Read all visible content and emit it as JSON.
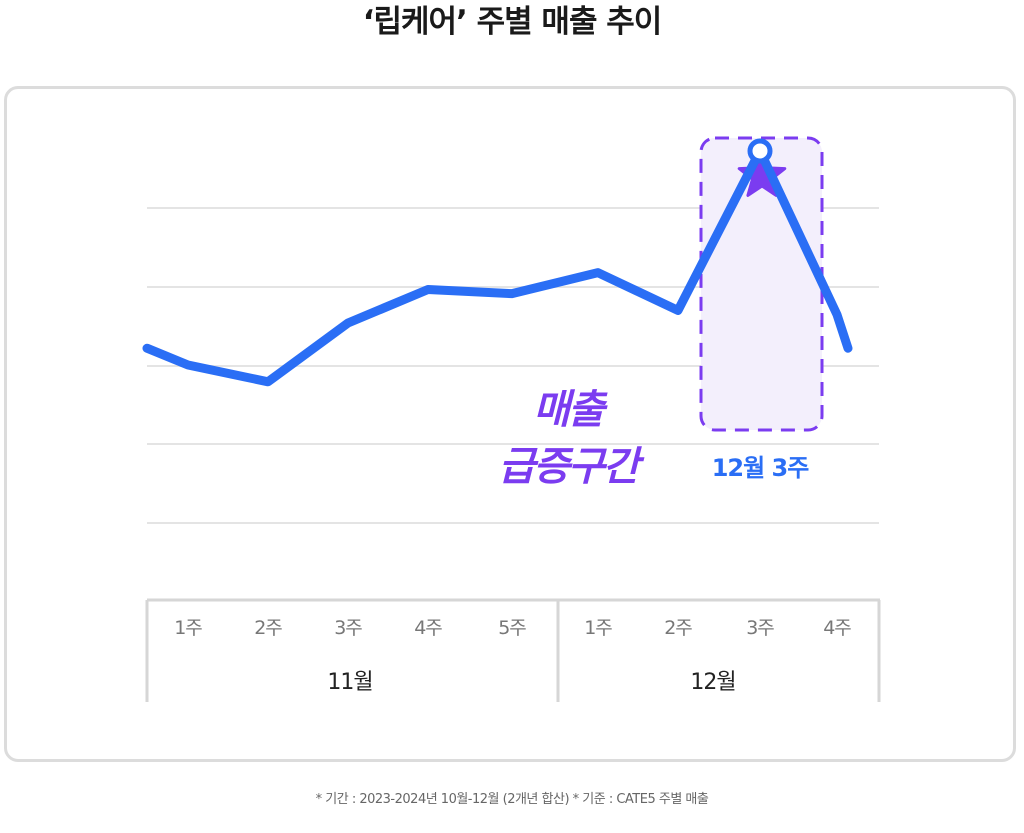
{
  "title": "‘립케어’ 주별 매출 추이",
  "footnote": "* 기간 : 2023-2024년 10월-12월 (2개년 합산)  * 기준 : CATE5 주별 매출",
  "annotation": {
    "surge_line1": "매출",
    "surge_line2": "급증구간",
    "peak_label": "12월 3주",
    "icon": "star-icon"
  },
  "colors": {
    "line": "#2a6ef5",
    "accent": "#7b3cf0",
    "highlight_fill": "#f3effc",
    "grid": "#e4e4e4",
    "axis_text": "#777777"
  },
  "chart_data": {
    "type": "line",
    "title": "‘립케어’ 주별 매출 추이",
    "xlabel": "",
    "ylabel": "",
    "grid": true,
    "months": [
      {
        "label": "11월",
        "weeks": [
          "1주",
          "2주",
          "3주",
          "4주",
          "5주"
        ]
      },
      {
        "label": "12월",
        "weeks": [
          "1주",
          "2주",
          "3주",
          "4주"
        ]
      }
    ],
    "categories": [
      "11월 1주",
      "11월 2주",
      "11월 3주",
      "11월 4주",
      "11월 5주",
      "12월 1주",
      "12월 2주",
      "12월 3주",
      "12월 4주"
    ],
    "values": [
      10,
      8,
      15,
      19,
      18.5,
      21,
      16.5,
      35.5,
      16
    ],
    "ylim": [
      -18,
      38
    ],
    "start_value": 12,
    "end_value": 12,
    "highlight_index": 7
  }
}
